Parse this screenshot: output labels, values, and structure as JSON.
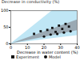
{
  "chart_data": {
    "type": "scatter",
    "ylabel": "Decrease in conductivity (%)",
    "xlabel": "Decrease in water content (%)",
    "xlim": [
      0,
      40
    ],
    "xticks": [
      0,
      10,
      20,
      30,
      40
    ],
    "ylim": [
      0,
      100
    ],
    "yticks": [
      0,
      50,
      100
    ],
    "bands": [
      {
        "color": "#bfe6f5",
        "x": [
          0,
          25,
          40
        ],
        "lower": [
          0,
          16,
          25
        ],
        "upper": [
          0,
          100,
          100
        ]
      },
      {
        "color": "#9aa9b3",
        "x": [
          0,
          40
        ],
        "lower": [
          0,
          40
        ],
        "upper": [
          0,
          72
        ]
      }
    ],
    "series": [
      {
        "name": "Experiment",
        "marker": "square",
        "color": "#111111",
        "x": [
          14,
          18,
          22,
          25,
          27,
          29,
          31,
          33,
          35
        ],
        "values": [
          30,
          38,
          42,
          48,
          36,
          55,
          45,
          60,
          52
        ]
      },
      {
        "name": "Model",
        "marker": "circle",
        "color": "#111111",
        "x": [
          20,
          24,
          28,
          32,
          36
        ],
        "values": [
          22,
          28,
          30,
          34,
          38
        ]
      }
    ]
  }
}
